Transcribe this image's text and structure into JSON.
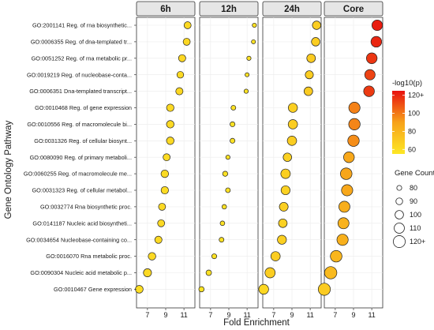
{
  "chart_data": {
    "type": "scatter",
    "xlabel": "Fold Enrichment",
    "ylabel": "Gene Ontology Pathway",
    "x_ticks": [
      7,
      9,
      11
    ],
    "xlim": [
      5.8,
      12.2
    ],
    "panels": [
      "6h",
      "12h",
      "24h",
      "Core"
    ],
    "categories": [
      "GO:2001141 Reg. of rna biosynthetic...",
      "GO:0006355 Reg. of dna-templated tr...",
      "GO:0051252 Reg. of rna metabolic pr...",
      "GO:0019219 Reg. of nucleobase-conta...",
      "GO:0006351 Dna-templated transcript...",
      "GO:0010468 Reg. of gene expression",
      "GO:0010556 Reg. of macromolecule bi...",
      "GO:0031326 Reg. of cellular biosynt...",
      "GO:0080090 Reg. of primary metaboli...",
      "GO:0060255 Reg. of macromolecule me...",
      "GO:0031323 Reg. of cellular metabol...",
      "GO:0032774 Rna biosynthetic proc.",
      "GO:0141187 Nucleic acid biosyntheti...",
      "GO:0034654 Nucleobase-containing co...",
      "GO:0016070 Rna metabolic proc.",
      "GO:0090304 Nucleic acid metabolic p...",
      "GO:0010467 Gene expression"
    ],
    "series": [
      {
        "name": "6h",
        "fold_enrichment": [
          11.4,
          11.3,
          10.8,
          10.6,
          10.5,
          9.5,
          9.5,
          9.5,
          9.1,
          8.9,
          8.9,
          8.6,
          8.5,
          8.2,
          7.5,
          7.0,
          6.1
        ],
        "neg_log10_p": [
          62,
          63,
          63,
          62,
          63,
          62,
          62,
          62,
          61,
          61,
          61,
          62,
          62,
          62,
          62,
          62,
          60
        ],
        "gene_count": [
          92,
          92,
          93,
          90,
          93,
          94,
          95,
          95,
          92,
          95,
          94,
          92,
          92,
          93,
          95,
          98,
          96
        ]
      },
      {
        "name": "12h",
        "fold_enrichment": [
          11.8,
          11.7,
          11.2,
          11.0,
          10.9,
          9.5,
          9.4,
          9.4,
          8.9,
          8.6,
          8.9,
          8.5,
          8.3,
          8.2,
          7.4,
          6.8,
          6.0
        ],
        "neg_log10_p": [
          58,
          58,
          58,
          58,
          58,
          58,
          58,
          58,
          58,
          58,
          58,
          58,
          58,
          58,
          58,
          58,
          57
        ],
        "gene_count": [
          76,
          75,
          76,
          74,
          76,
          79,
          80,
          80,
          76,
          81,
          79,
          78,
          78,
          79,
          80,
          83,
          82
        ]
      },
      {
        "name": "24h",
        "fold_enrichment": [
          11.7,
          11.6,
          11.1,
          10.9,
          10.8,
          9.1,
          9.1,
          9.0,
          8.5,
          8.3,
          8.3,
          8.1,
          8.0,
          7.9,
          7.2,
          6.6,
          5.9
        ],
        "neg_log10_p": [
          68,
          68,
          69,
          68,
          69,
          67,
          68,
          68,
          66,
          67,
          66,
          67,
          66,
          67,
          68,
          68,
          63
        ],
        "gene_count": [
          100,
          100,
          101,
          98,
          101,
          104,
          105,
          105,
          100,
          106,
          103,
          102,
          101,
          103,
          105,
          110,
          108
        ]
      },
      {
        "name": "Core",
        "fold_enrichment": [
          11.6,
          11.5,
          11.0,
          10.8,
          10.7,
          9.1,
          9.1,
          9.0,
          8.5,
          8.2,
          8.3,
          8.0,
          7.9,
          7.8,
          7.1,
          6.5,
          5.8
        ],
        "neg_log10_p": [
          122,
          120,
          116,
          113,
          115,
          98,
          97,
          95,
          87,
          88,
          87,
          84,
          82,
          83,
          80,
          78,
          69
        ],
        "gene_count": [
          112,
          113,
          113,
          111,
          113,
          116,
          117,
          117,
          113,
          118,
          116,
          115,
          115,
          116,
          118,
          122,
          121
        ]
      }
    ],
    "color_legend": {
      "title": "-log10(p)",
      "ticks": [
        "120+",
        "100",
        "80",
        "60"
      ],
      "low_color": "#fde725",
      "mid_color": "#f7a21a",
      "high_color": "#e8110f",
      "range": [
        55,
        125
      ]
    },
    "size_legend": {
      "title": "Gene Count",
      "labels": [
        "80",
        "90",
        "100",
        "110",
        "120+"
      ]
    },
    "panel_strip_color": "#e6e6e6",
    "grid": true,
    "legend_position": "right"
  }
}
